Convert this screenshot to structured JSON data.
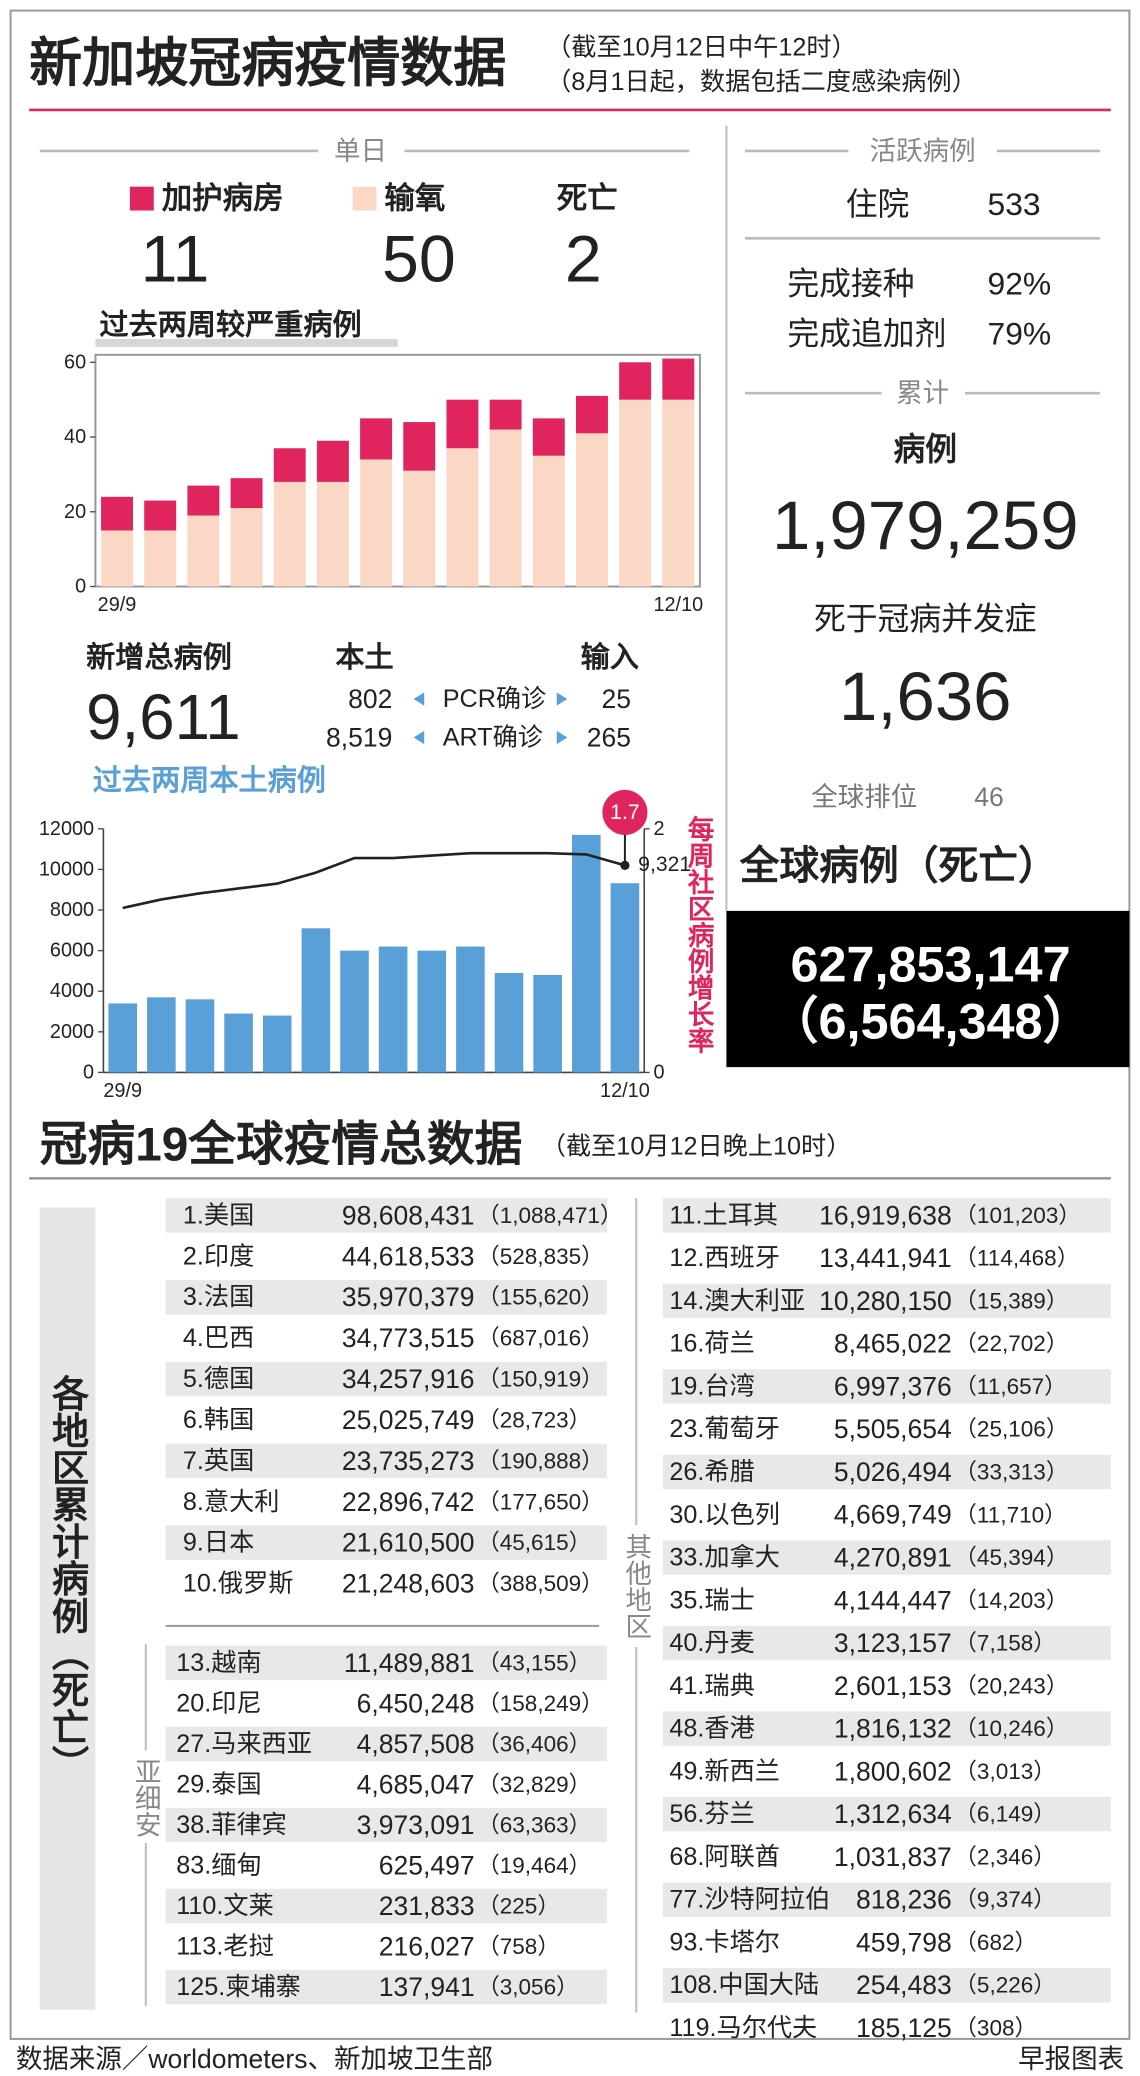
{
  "header": {
    "title": "新加坡冠病疫情数据",
    "notes": [
      "（截至10月12日中午12时）",
      "（8月1日起，数据包括二度感染病例）"
    ]
  },
  "daily": {
    "heading": "单日",
    "icu": 11,
    "oxygen": 50,
    "death_label": "死亡",
    "death": 2
  },
  "chart_data": [
    {
      "type": "bar",
      "stacked": true,
      "title": "过去两周较严重病例",
      "categories": [
        "29/9",
        null,
        null,
        null,
        null,
        null,
        null,
        null,
        null,
        null,
        null,
        null,
        null,
        "12/10"
      ],
      "series": [
        {
          "name": "输氧",
          "color": "#fad8c5",
          "values": [
            15,
            15,
            19,
            21,
            28,
            28,
            34,
            31,
            37,
            42,
            35,
            41,
            50,
            50
          ]
        },
        {
          "name": "加护病房",
          "color": "#e0245e",
          "values": [
            9,
            8,
            8,
            8,
            9,
            11,
            11,
            13,
            13,
            8,
            10,
            10,
            10,
            11
          ]
        }
      ],
      "ylim": [
        0,
        62
      ],
      "yticks": [
        0,
        20,
        40,
        60
      ]
    },
    {
      "type": "combo",
      "title": "过去两周本土病例",
      "y2_title": "每周社区病例增长率",
      "categories": [
        "29/9",
        null,
        null,
        null,
        null,
        null,
        null,
        null,
        null,
        null,
        null,
        null,
        null,
        "12/10"
      ],
      "series": [
        {
          "type": "bar",
          "color": "#5aa0d8",
          "values": [
            3400,
            3700,
            3600,
            2900,
            2800,
            7100,
            6000,
            6200,
            6000,
            6200,
            4900,
            4800,
            11700,
            9321
          ],
          "value_labels": [
            null,
            null,
            null,
            null,
            null,
            null,
            null,
            null,
            null,
            null,
            null,
            null,
            null,
            "9,321"
          ]
        },
        {
          "type": "line",
          "axis": "y2",
          "color": "#222222",
          "values": [
            1.35,
            1.42,
            1.47,
            1.51,
            1.55,
            1.64,
            1.76,
            1.76,
            1.78,
            1.8,
            1.8,
            1.8,
            1.79,
            1.7
          ],
          "value_labels": [
            null,
            null,
            null,
            null,
            null,
            null,
            null,
            null,
            null,
            null,
            null,
            null,
            null,
            "1.7"
          ]
        }
      ],
      "ylim": [
        0,
        12000
      ],
      "yticks": [
        0,
        2000,
        4000,
        6000,
        8000,
        10000,
        12000
      ],
      "y2lim": [
        0,
        2
      ],
      "y2ticks": [
        0,
        2
      ]
    }
  ],
  "new_cases": {
    "label": "新增总病例",
    "total": "9,611",
    "local_label": "本土",
    "imported_label": "输入",
    "rows": [
      {
        "local": "802",
        "label": "PCR确诊",
        "imported": "25"
      },
      {
        "local": "8,519",
        "label": "ART确诊",
        "imported": "265"
      }
    ]
  },
  "summary": {
    "active_heading": "活跃病例",
    "hospital_label": "住院",
    "hospital": 533,
    "vaccinated_label": "完成接种",
    "vaccinated": "92%",
    "booster_label": "完成追加剂",
    "booster": "79%",
    "cumulative_heading": "累计",
    "cases_label": "病例",
    "cases": "1,979,259",
    "deaths_label": "死于冠病并发症",
    "deaths": "1,636",
    "rank_label": "全球排位",
    "rank": 46,
    "global_label": "全球病例（死亡）",
    "global_cases": "627,853,147",
    "global_deaths": "（6,564,348）"
  },
  "world": {
    "title": "冠病19全球疫情总数据",
    "note": "（截至10月12日晚上10时）",
    "side_label": "各地区累计病例（死亡）",
    "top10": [
      [
        "1.美国",
        "98,608,431",
        "（1,088,471）"
      ],
      [
        "2.印度",
        "44,618,533",
        "（528,835）"
      ],
      [
        "3.法国",
        "35,970,379",
        "（155,620）"
      ],
      [
        "4.巴西",
        "34,773,515",
        "（687,016）"
      ],
      [
        "5.德国",
        "34,257,916",
        "（150,919）"
      ],
      [
        "6.韩国",
        "25,025,749",
        "（28,723）"
      ],
      [
        "7.英国",
        "23,735,273",
        "（190,888）"
      ],
      [
        "8.意大利",
        "22,896,742",
        "（177,650）"
      ],
      [
        "9.日本",
        "21,610,500",
        "（45,615）"
      ],
      [
        "10.俄罗斯",
        "21,248,603",
        "（388,509）"
      ]
    ],
    "asean_label": "亚细安",
    "asean": [
      [
        "13.越南",
        "11,489,881",
        "（43,155）"
      ],
      [
        "20.印尼",
        "6,450,248",
        "（158,249）"
      ],
      [
        "27.马来西亚",
        "4,857,508",
        "（36,406）"
      ],
      [
        "29.泰国",
        "4,685,047",
        "（32,829）"
      ],
      [
        "38.菲律宾",
        "3,973,091",
        "（63,363）"
      ],
      [
        "83.缅甸",
        "625,497",
        "（19,464）"
      ],
      [
        "110.文莱",
        "231,833",
        "（225）"
      ],
      [
        "113.老挝",
        "216,027",
        "（758）"
      ],
      [
        "125.柬埔寨",
        "137,941",
        "（3,056）"
      ]
    ],
    "others_label": "其他地区",
    "others": [
      [
        "11.土耳其",
        "16,919,638",
        "（101,203）"
      ],
      [
        "12.西班牙",
        "13,441,941",
        "（114,468）"
      ],
      [
        "14.澳大利亚",
        "10,280,150",
        "（15,389）"
      ],
      [
        "16.荷兰",
        "8,465,022",
        "（22,702）"
      ],
      [
        "19.台湾",
        "6,997,376",
        "（11,657）"
      ],
      [
        "23.葡萄牙",
        "5,505,654",
        "（25,106）"
      ],
      [
        "26.希腊",
        "5,026,494",
        "（33,313）"
      ],
      [
        "30.以色列",
        "4,669,749",
        "（11,710）"
      ],
      [
        "33.加拿大",
        "4,270,891",
        "（45,394）"
      ],
      [
        "35.瑞士",
        "4,144,447",
        "（14,203）"
      ],
      [
        "40.丹麦",
        "3,123,157",
        "（7,158）"
      ],
      [
        "41.瑞典",
        "2,601,153",
        "（20,243）"
      ],
      [
        "48.香港",
        "1,816,132",
        "（10,246）"
      ],
      [
        "49.新西兰",
        "1,800,602",
        "（3,013）"
      ],
      [
        "56.芬兰",
        "1,312,634",
        "（6,149）"
      ],
      [
        "68.阿联酋",
        "1,031,837",
        "（2,346）"
      ],
      [
        "77.沙特阿拉伯",
        "818,236",
        "（9,374）"
      ],
      [
        "93.卡塔尔",
        "459,798",
        "（682）"
      ],
      [
        "108.中国大陆",
        "254,483",
        "（5,226）"
      ],
      [
        "119.马尔代夫",
        "185,125",
        "（308）"
      ]
    ]
  },
  "footer": {
    "source": "数据来源／worldometers、新加坡卫生部",
    "credit": "早报图表"
  }
}
